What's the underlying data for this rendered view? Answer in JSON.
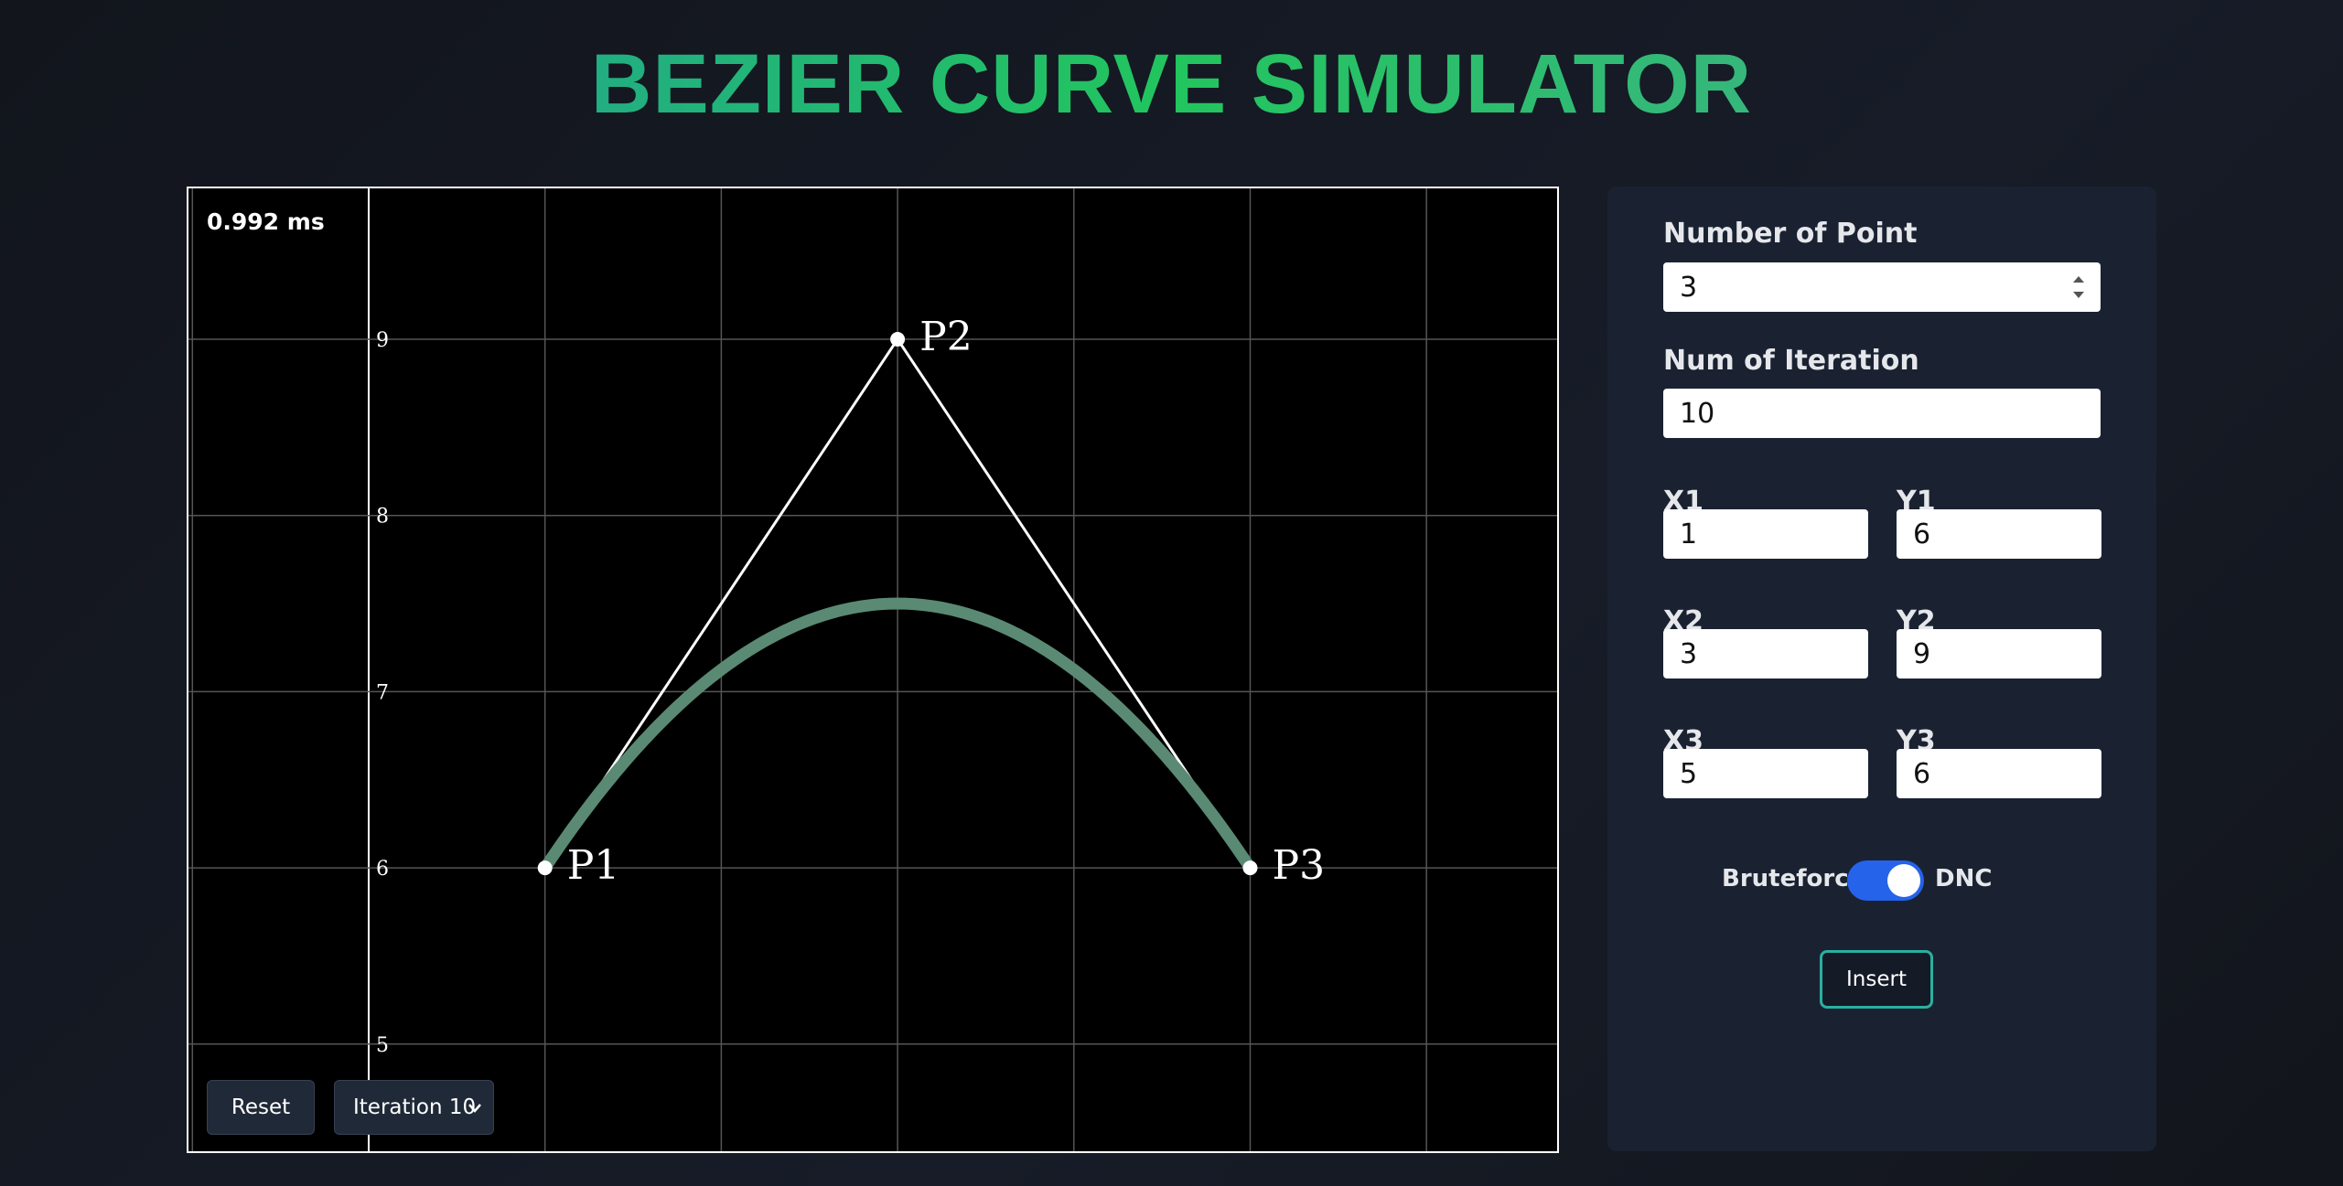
{
  "header": {
    "title": "BEZIER CURVE SIMULATOR"
  },
  "canvas": {
    "timing": "0.992 ms",
    "yticks": [
      5,
      6,
      7,
      8,
      9
    ],
    "reset": "Reset",
    "iteration_select": "Iteration 10"
  },
  "points": [
    {
      "label": "P1",
      "x": 1,
      "y": 6
    },
    {
      "label": "P2",
      "x": 3,
      "y": 9
    },
    {
      "label": "P3",
      "x": 5,
      "y": 6
    }
  ],
  "form": {
    "num_points_label": "Number of Point",
    "num_points": 3,
    "iterations_label": "Num of Iteration",
    "iterations": 10,
    "coords": [
      {
        "x_label": "X1",
        "y_label": "Y1"
      },
      {
        "x_label": "X2",
        "y_label": "Y2"
      },
      {
        "x_label": "X3",
        "y_label": "Y3"
      }
    ],
    "toggle_left": "Bruteforce",
    "toggle_right": "DNC",
    "insert": "Insert"
  }
}
